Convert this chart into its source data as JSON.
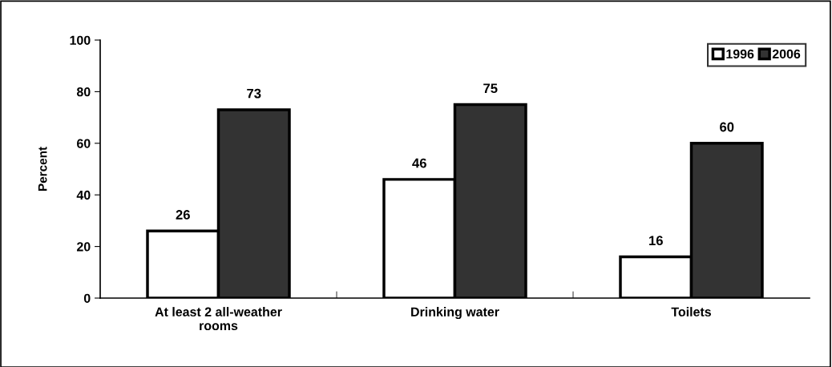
{
  "chart_data": {
    "type": "bar",
    "ylabel": "Percent",
    "categories": [
      "At least 2 all-weather\nrooms",
      "Drinking water",
      "Toilets"
    ],
    "series": [
      {
        "name": "1996",
        "color": "#ffffff",
        "values": [
          26,
          46,
          16
        ]
      },
      {
        "name": "2006",
        "color": "#333333",
        "values": [
          73,
          75,
          60
        ]
      }
    ],
    "ylim": [
      0,
      100
    ],
    "yticks": [
      0,
      20,
      40,
      60,
      80,
      100
    ],
    "grid": false,
    "legend": "top right",
    "data_labels": true
  }
}
